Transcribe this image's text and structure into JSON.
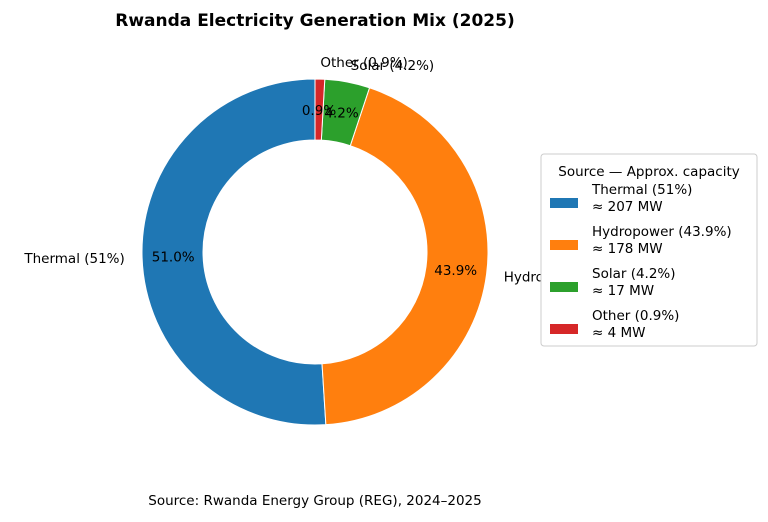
{
  "chart_data": {
    "type": "pie",
    "variant": "donut",
    "title": "Rwanda Electricity Generation Mix (2025)",
    "slices": [
      {
        "key": "thermal",
        "label": "Thermal (51%)",
        "value": 51.0,
        "pct_label": "51.0%",
        "legend_label": "Thermal (51%)",
        "legend_capacity": "≈ 207 MW",
        "color": "#1f77b4"
      },
      {
        "key": "hydro",
        "label": "Hydropower (43.9%)",
        "value": 43.9,
        "pct_label": "43.9%",
        "legend_label": "Hydropower (43.9%)",
        "legend_capacity": "≈ 178 MW",
        "color": "#ff7f0e"
      },
      {
        "key": "solar",
        "label": "Solar (4.2%)",
        "value": 4.2,
        "pct_label": "4.2%",
        "legend_label": "Solar (4.2%)",
        "legend_capacity": "≈ 17 MW",
        "color": "#2ca02c"
      },
      {
        "key": "other",
        "label": "Other (0.9%)",
        "value": 0.9,
        "pct_label": "0.9%",
        "legend_label": "Other (0.9%)",
        "legend_capacity": "≈ 4 MW",
        "color": "#d62728"
      }
    ],
    "legend": {
      "title": "Source — Approx. capacity",
      "placement": "right"
    },
    "source_note": "Source: Rwanda Energy Group (REG), 2024–2025"
  }
}
